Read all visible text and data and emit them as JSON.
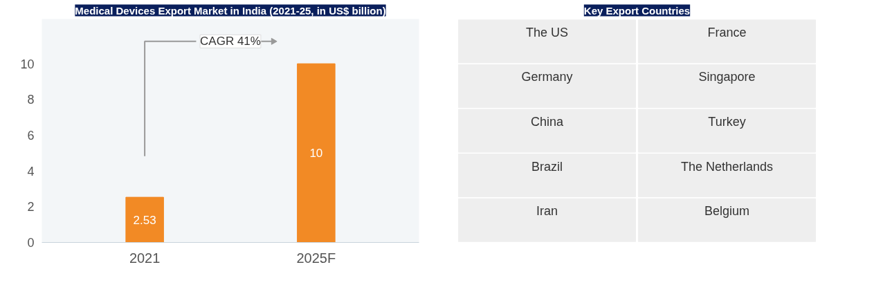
{
  "chart_data": [
    {
      "type": "bar",
      "title": "Medical Devices Export Market in India (2021-25, in US$ billion)",
      "categories": [
        "2021",
        "2025F"
      ],
      "values": [
        2.53,
        10
      ],
      "color": "#f28a25",
      "ylim": [
        0,
        12.5
      ],
      "yticks": [
        0,
        2,
        4,
        6,
        8,
        10
      ],
      "grid": false,
      "data_labels": true,
      "annotations": [
        "CAGR 41%"
      ]
    },
    {
      "type": "other",
      "title": "Key Export Countries",
      "annotations": [
        "The US",
        "France",
        "Germany",
        "Singapore",
        "China",
        "Turkey",
        "Brazil",
        "The Netherlands",
        "Iran",
        "Belgium"
      ]
    }
  ]
}
